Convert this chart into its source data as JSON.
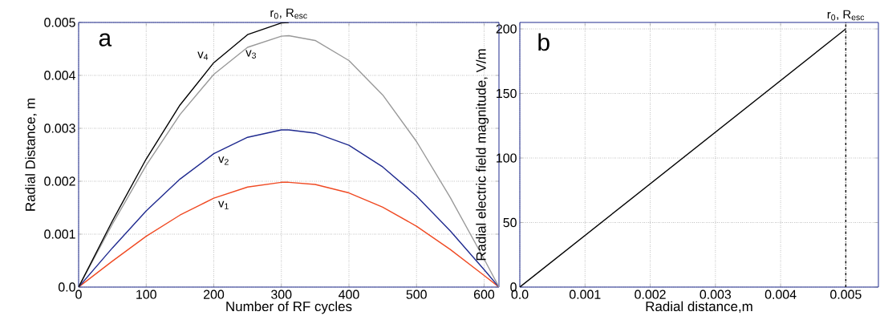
{
  "chart_data": [
    {
      "type": "line",
      "title": "a",
      "xlabel": "Number of RF cycles",
      "ylabel": "Radial Distance, m",
      "xlim": [
        0,
        622
      ],
      "xticks": [
        0,
        100,
        200,
        300,
        400,
        500,
        600
      ],
      "ylim": [
        0,
        0.005
      ],
      "yticks": [
        {
          "value": 0,
          "label": "0.0"
        },
        0.001,
        0.002,
        0.003,
        0.004,
        0.005
      ],
      "grid": true,
      "series": [
        {
          "name": "v$_{1}$",
          "color": "#f04a23",
          "x": [
            0,
            50,
            100,
            150,
            200,
            250,
            300,
            311,
            350,
            400,
            450,
            500,
            550,
            600,
            622
          ],
          "values": [
            0,
            0.00049,
            0.00096,
            0.00136,
            0.00168,
            0.00189,
            0.00198,
            0.00198,
            0.00194,
            0.00178,
            0.00151,
            0.00115,
            0.00071,
            0.00022,
            0
          ]
        },
        {
          "name": "v$_{2}$",
          "color": "#1f2a8f",
          "x": [
            0,
            50,
            100,
            150,
            200,
            250,
            300,
            311,
            350,
            400,
            450,
            500,
            550,
            600,
            622
          ],
          "values": [
            0,
            0.00074,
            0.00144,
            0.00204,
            0.00252,
            0.00283,
            0.00297,
            0.00297,
            0.00291,
            0.00268,
            0.00227,
            0.00172,
            0.00106,
            0.00033,
            0
          ]
        },
        {
          "name": "v$_{3}$",
          "color": "#999999",
          "x": [
            0,
            50,
            100,
            150,
            200,
            250,
            300,
            311,
            350,
            400,
            450,
            500,
            550,
            600,
            622
          ],
          "values": [
            0,
            0.00119,
            0.0023,
            0.00326,
            0.00402,
            0.00453,
            0.00474,
            0.00475,
            0.00466,
            0.00428,
            0.00363,
            0.00275,
            0.00169,
            0.00053,
            0
          ]
        },
        {
          "name": "v$_{4}$",
          "color": "#000000",
          "x": [
            0,
            50,
            100,
            150,
            200,
            250,
            300,
            311
          ],
          "values": [
            0,
            0.00125,
            0.00242,
            0.00344,
            0.00424,
            0.00477,
            0.00499,
            0.005
          ]
        }
      ],
      "annotations": [
        {
          "text": "r$_{0}$, R$_{esc}$",
          "x": 311,
          "y": 0.005
        }
      ]
    },
    {
      "type": "line",
      "title": "b",
      "xlabel": "Radial distance,m",
      "ylabel": "Radial electric field magnitude, V/m",
      "xlim": [
        0,
        0.0055
      ],
      "xticks": [
        {
          "value": 0,
          "label": "0.0"
        },
        0.001,
        0.002,
        0.003,
        0.004,
        0.005
      ],
      "ylim": [
        0,
        205
      ],
      "yticks": [
        0,
        50,
        100,
        150,
        200
      ],
      "grid": true,
      "series": [
        {
          "color": "#000000",
          "x": [
            0,
            0.005
          ],
          "values": [
            0,
            200
          ]
        }
      ],
      "ref_lines": [
        {
          "axis": "x",
          "value": 0.005,
          "label": "r$_{0}$, R$_{esc}$",
          "color": "#000000",
          "line_style": "dashdot"
        }
      ]
    }
  ]
}
